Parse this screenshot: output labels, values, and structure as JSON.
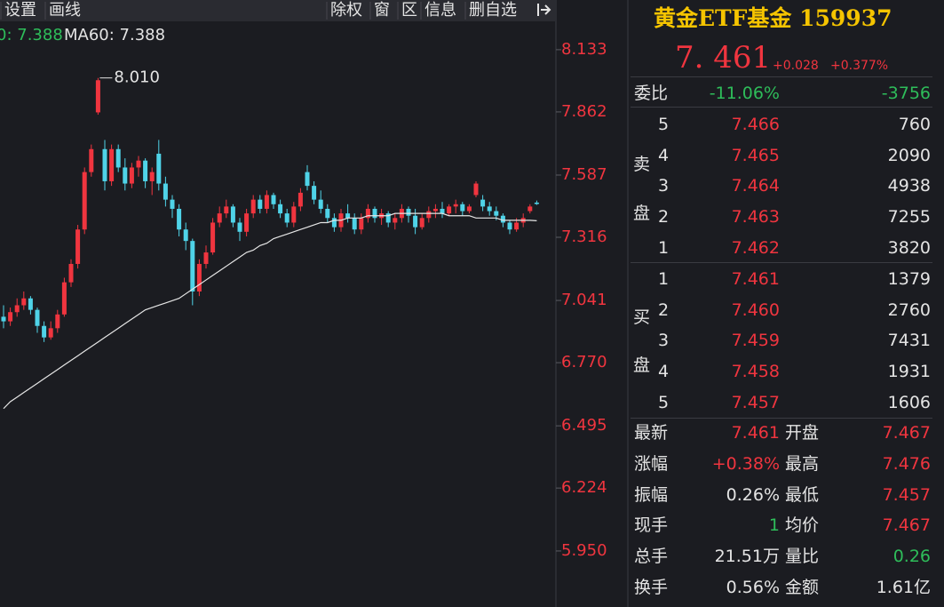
{
  "toolbar": {
    "left": [
      "设置",
      "画线"
    ],
    "right": [
      "除权",
      "窗",
      "区",
      "信息",
      "删自选"
    ]
  },
  "chart_data": {
    "type": "candlestick",
    "ma_legend": [
      "0: 7.388",
      "MA60: 7.388"
    ],
    "annotation": "8.010",
    "annotation_index": 14,
    "ylim": [
      5.706,
      8.241
    ],
    "yticks": [
      8.133,
      7.862,
      7.587,
      7.316,
      7.041,
      {
        "value": 6.77,
        "label": "6.770"
      },
      6.495,
      6.224,
      {
        "value": 5.95,
        "label": "5.950"
      }
    ],
    "up_color": "#f0353f",
    "down_color": "#4fd3e8",
    "candles": [
      [
        6.97,
        7.02,
        6.92,
        6.95
      ],
      [
        6.95,
        7.01,
        6.93,
        6.99
      ],
      [
        6.99,
        7.05,
        6.97,
        7.02
      ],
      [
        7.02,
        7.08,
        7.0,
        7.05
      ],
      [
        7.05,
        7.06,
        6.98,
        7.0
      ],
      [
        7.0,
        7.01,
        6.9,
        6.93
      ],
      [
        6.93,
        6.95,
        6.86,
        6.88
      ],
      [
        6.88,
        6.95,
        6.87,
        6.92
      ],
      [
        6.92,
        7.0,
        6.9,
        6.98
      ],
      [
        6.98,
        7.14,
        6.97,
        7.12
      ],
      [
        7.12,
        7.22,
        7.1,
        7.2
      ],
      [
        7.2,
        7.37,
        7.18,
        7.35
      ],
      [
        7.35,
        7.62,
        7.33,
        7.6
      ],
      [
        7.6,
        7.72,
        7.58,
        7.7
      ],
      [
        7.86,
        8.01,
        7.85,
        8.0
      ],
      [
        7.7,
        7.74,
        7.52,
        7.56
      ],
      [
        7.56,
        7.72,
        7.54,
        7.7
      ],
      [
        7.7,
        7.72,
        7.6,
        7.62
      ],
      [
        7.62,
        7.66,
        7.52,
        7.55
      ],
      [
        7.55,
        7.64,
        7.53,
        7.62
      ],
      [
        7.62,
        7.67,
        7.58,
        7.65
      ],
      [
        7.65,
        7.66,
        7.53,
        7.56
      ],
      [
        7.56,
        7.62,
        7.5,
        7.6
      ],
      [
        7.68,
        7.74,
        7.52,
        7.55
      ],
      [
        7.55,
        7.58,
        7.45,
        7.48
      ],
      [
        7.48,
        7.5,
        7.4,
        7.44
      ],
      [
        7.44,
        7.46,
        7.32,
        7.35
      ],
      [
        7.35,
        7.38,
        7.26,
        7.3
      ],
      [
        7.3,
        7.31,
        7.02,
        7.08
      ],
      [
        7.08,
        7.22,
        7.06,
        7.2
      ],
      [
        7.2,
        7.28,
        7.18,
        7.25
      ],
      [
        7.25,
        7.4,
        7.24,
        7.38
      ],
      [
        7.38,
        7.45,
        7.36,
        7.42
      ],
      [
        7.42,
        7.48,
        7.4,
        7.45
      ],
      [
        7.45,
        7.46,
        7.36,
        7.38
      ],
      [
        7.38,
        7.4,
        7.3,
        7.34
      ],
      [
        7.34,
        7.44,
        7.32,
        7.42
      ],
      [
        7.42,
        7.5,
        7.4,
        7.48
      ],
      [
        7.48,
        7.5,
        7.42,
        7.44
      ],
      [
        7.44,
        7.52,
        7.42,
        7.5
      ],
      [
        7.5,
        7.51,
        7.44,
        7.46
      ],
      [
        7.46,
        7.48,
        7.4,
        7.42
      ],
      [
        7.42,
        7.44,
        7.36,
        7.38
      ],
      [
        7.38,
        7.47,
        7.36,
        7.45
      ],
      [
        7.45,
        7.53,
        7.43,
        7.51
      ],
      [
        7.6,
        7.63,
        7.52,
        7.54
      ],
      [
        7.54,
        7.56,
        7.46,
        7.48
      ],
      [
        7.48,
        7.52,
        7.42,
        7.44
      ],
      [
        7.44,
        7.46,
        7.38,
        7.4
      ],
      [
        7.4,
        7.42,
        7.34,
        7.36
      ],
      [
        7.36,
        7.44,
        7.34,
        7.42
      ],
      [
        7.42,
        7.46,
        7.38,
        7.4
      ],
      [
        7.4,
        7.42,
        7.33,
        7.35
      ],
      [
        7.35,
        7.42,
        7.33,
        7.4
      ],
      [
        7.4,
        7.46,
        7.38,
        7.44
      ],
      [
        7.44,
        7.45,
        7.38,
        7.4
      ],
      [
        7.4,
        7.44,
        7.37,
        7.42
      ],
      [
        7.42,
        7.43,
        7.36,
        7.38
      ],
      [
        7.38,
        7.42,
        7.35,
        7.4
      ],
      [
        7.4,
        7.46,
        7.38,
        7.44
      ],
      [
        7.44,
        7.45,
        7.38,
        7.41
      ],
      [
        7.41,
        7.44,
        7.33,
        7.36
      ],
      [
        7.36,
        7.42,
        7.35,
        7.4
      ],
      [
        7.4,
        7.45,
        7.38,
        7.43
      ],
      [
        7.43,
        7.46,
        7.4,
        7.44
      ],
      [
        7.44,
        7.47,
        7.4,
        7.42
      ],
      [
        7.42,
        7.46,
        7.41,
        7.45
      ],
      [
        7.45,
        7.48,
        7.42,
        7.46
      ],
      [
        7.46,
        7.47,
        7.41,
        7.43
      ],
      [
        7.43,
        7.46,
        7.42,
        7.45
      ],
      [
        7.5,
        7.56,
        7.49,
        7.55
      ],
      [
        7.48,
        7.5,
        7.43,
        7.45
      ],
      [
        7.45,
        7.47,
        7.41,
        7.43
      ],
      [
        7.43,
        7.45,
        7.39,
        7.41
      ],
      [
        7.41,
        7.42,
        7.36,
        7.38
      ],
      [
        7.38,
        7.39,
        7.33,
        7.35
      ],
      [
        7.35,
        7.4,
        7.34,
        7.38
      ],
      [
        7.38,
        7.42,
        7.36,
        7.4
      ],
      [
        7.43,
        7.46,
        7.42,
        7.45
      ],
      [
        7.467,
        7.476,
        7.457,
        7.461
      ]
    ],
    "ma60": {
      "color": "#e6e6e6",
      "values": [
        6.57,
        6.6,
        6.62,
        6.64,
        6.66,
        6.68,
        6.7,
        6.72,
        6.74,
        6.76,
        6.78,
        6.8,
        6.82,
        6.84,
        6.86,
        6.88,
        6.9,
        6.92,
        6.94,
        6.96,
        6.98,
        7.0,
        7.01,
        7.02,
        7.03,
        7.04,
        7.05,
        7.07,
        7.09,
        7.11,
        7.13,
        7.15,
        7.17,
        7.19,
        7.21,
        7.23,
        7.25,
        7.26,
        7.28,
        7.29,
        7.31,
        7.32,
        7.33,
        7.34,
        7.35,
        7.36,
        7.37,
        7.38,
        7.38,
        7.39,
        7.39,
        7.4,
        7.4,
        7.4,
        7.41,
        7.41,
        7.41,
        7.41,
        7.42,
        7.42,
        7.42,
        7.42,
        7.42,
        7.42,
        7.42,
        7.42,
        7.41,
        7.41,
        7.41,
        7.41,
        7.4,
        7.4,
        7.4,
        7.4,
        7.39,
        7.39,
        7.39,
        7.39,
        7.39,
        7.388
      ]
    }
  },
  "quote": {
    "title": "黄金ETF基金 159937",
    "price": "7. 461",
    "change": "+0.028",
    "change_pct": "+0.377%"
  },
  "order_ratio": {
    "label": "委比",
    "pct": "-11.06%",
    "diff": "-3756"
  },
  "sell": {
    "label": [
      "卖",
      "盘"
    ],
    "levels": [
      [
        "5",
        "7.466",
        "760"
      ],
      [
        "4",
        "7.465",
        "2090"
      ],
      [
        "3",
        "7.464",
        "4938"
      ],
      [
        "2",
        "7.463",
        "7255"
      ],
      [
        "1",
        "7.462",
        "3820"
      ]
    ]
  },
  "buy": {
    "label": [
      "买",
      "盘"
    ],
    "levels": [
      [
        "1",
        "7.461",
        "1379"
      ],
      [
        "2",
        "7.460",
        "2760"
      ],
      [
        "3",
        "7.459",
        "7431"
      ],
      [
        "4",
        "7.458",
        "1931"
      ],
      [
        "5",
        "7.457",
        "1606"
      ]
    ]
  },
  "stats": [
    [
      "最新",
      "7.461",
      "开盘",
      "7.467"
    ],
    [
      "涨幅",
      "+0.38%",
      "最高",
      "7.476"
    ],
    [
      "振幅",
      "0.26%",
      "最低",
      "7.457"
    ],
    [
      "现手",
      "1",
      "均价",
      "7.467"
    ],
    [
      "总手",
      "21.51万",
      "量比",
      "0.26"
    ],
    [
      "换手",
      "0.56%",
      "金额",
      "1.61亿"
    ]
  ]
}
